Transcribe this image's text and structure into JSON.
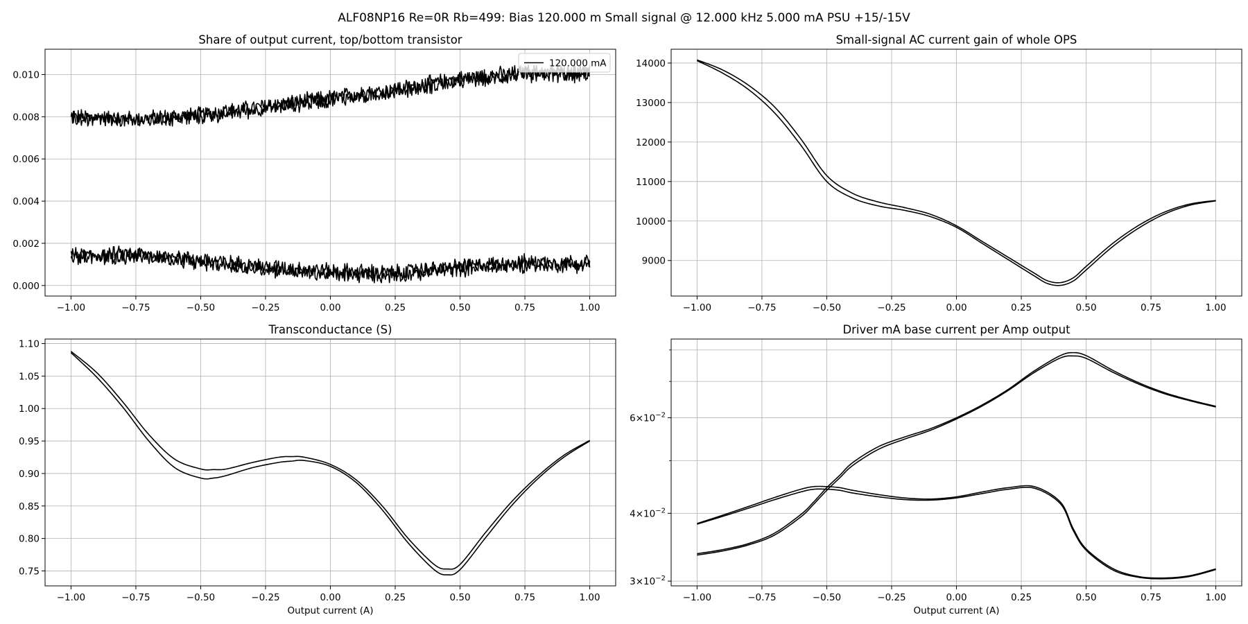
{
  "figure": {
    "suptitle": "ALF08NP16 Re=0R Rb=499: Bias 120.000 m Small signal @ 12.000 kHz 5.000 mA PSU +15/-15V"
  },
  "chart_data": [
    {
      "id": "share",
      "type": "line",
      "title": "Share of output current, top/bottom transistor",
      "xlabel": "",
      "ylabel": "",
      "xlim": [
        -1.1,
        1.1
      ],
      "ylim": [
        -0.0005,
        0.0112
      ],
      "xticks": [
        -1.0,
        -0.75,
        -0.5,
        -0.25,
        0.0,
        0.25,
        0.5,
        0.75,
        1.0
      ],
      "xtick_labels": [
        "−1.00",
        "−0.75",
        "−0.50",
        "−0.25",
        "0.00",
        "0.25",
        "0.50",
        "0.75",
        "1.00"
      ],
      "yticks": [
        0.0,
        0.002,
        0.004,
        0.006,
        0.008,
        0.01
      ],
      "ytick_labels": [
        "0.000",
        "0.002",
        "0.004",
        "0.006",
        "0.008",
        "0.010"
      ],
      "grid": true,
      "legend": {
        "position": "top-right",
        "entries": [
          "120.000 mA"
        ]
      },
      "noise": 0.00045,
      "series": [
        {
          "name": "120.000 mA",
          "x": [
            -1.0,
            -0.75,
            -0.5,
            -0.25,
            0.0,
            0.25,
            0.5,
            0.75,
            1.0
          ],
          "y": [
            0.008,
            0.0079,
            0.0081,
            0.0085,
            0.0089,
            0.0093,
            0.0098,
            0.0101,
            0.0101
          ]
        },
        {
          "x": [
            -1.0,
            -0.75,
            -0.5,
            -0.25,
            0.0,
            0.25,
            0.5,
            0.75,
            1.0
          ],
          "y": [
            0.0079,
            0.0078,
            0.008,
            0.0084,
            0.0088,
            0.0092,
            0.0097,
            0.01,
            0.01
          ]
        },
        {
          "x": [
            -1.0,
            -0.75,
            -0.5,
            -0.25,
            0.0,
            0.25,
            0.5,
            0.75,
            1.0
          ],
          "y": [
            0.0014,
            0.0015,
            0.0012,
            0.0009,
            0.0007,
            0.0006,
            0.0009,
            0.0011,
            0.0011
          ]
        },
        {
          "x": [
            -1.0,
            -0.75,
            -0.5,
            -0.25,
            0.0,
            0.25,
            0.5,
            0.75,
            1.0
          ],
          "y": [
            0.0013,
            0.0014,
            0.0011,
            0.0008,
            0.0005,
            0.0005,
            0.0008,
            0.001,
            0.001
          ]
        }
      ]
    },
    {
      "id": "gain",
      "type": "line",
      "title": "Small-signal AC current gain of whole OPS",
      "xlabel": "",
      "ylabel": "",
      "xlim": [
        -1.1,
        1.1
      ],
      "ylim": [
        8100,
        14350
      ],
      "xticks": [
        -1.0,
        -0.75,
        -0.5,
        -0.25,
        0.0,
        0.25,
        0.5,
        0.75,
        1.0
      ],
      "xtick_labels": [
        "−1.00",
        "−0.75",
        "−0.50",
        "−0.25",
        "0.00",
        "0.25",
        "0.50",
        "0.75",
        "1.00"
      ],
      "yticks": [
        9000,
        10000,
        11000,
        12000,
        13000,
        14000
      ],
      "ytick_labels": [
        "9000",
        "10000",
        "11000",
        "12000",
        "13000",
        "14000"
      ],
      "grid": true,
      "series": [
        {
          "x": [
            -1.0,
            -0.9,
            -0.8,
            -0.7,
            -0.6,
            -0.5,
            -0.4,
            -0.3,
            -0.2,
            -0.1,
            0.0,
            0.1,
            0.2,
            0.3,
            0.35,
            0.4,
            0.45,
            0.5,
            0.6,
            0.7,
            0.8,
            0.9,
            1.0
          ],
          "y": [
            14080,
            13820,
            13430,
            12880,
            12080,
            11150,
            10700,
            10480,
            10340,
            10170,
            9880,
            9480,
            9080,
            8680,
            8490,
            8440,
            8560,
            8850,
            9420,
            9880,
            10220,
            10430,
            10520
          ]
        },
        {
          "x": [
            -1.0,
            -0.9,
            -0.8,
            -0.7,
            -0.6,
            -0.5,
            -0.4,
            -0.3,
            -0.2,
            -0.1,
            0.0,
            0.1,
            0.2,
            0.3,
            0.35,
            0.4,
            0.45,
            0.5,
            0.6,
            0.7,
            0.8,
            0.9,
            1.0
          ],
          "y": [
            14060,
            13740,
            13320,
            12730,
            11920,
            11000,
            10580,
            10380,
            10270,
            10110,
            9840,
            9430,
            9020,
            8610,
            8420,
            8370,
            8480,
            8760,
            9340,
            9810,
            10170,
            10400,
            10510
          ]
        }
      ]
    },
    {
      "id": "transconductance",
      "type": "line",
      "title": "Transconductance (S)",
      "xlabel": "Output current (A)",
      "ylabel": "",
      "xlim": [
        -1.1,
        1.1
      ],
      "ylim": [
        0.727,
        1.107
      ],
      "xticks": [
        -1.0,
        -0.75,
        -0.5,
        -0.25,
        0.0,
        0.25,
        0.5,
        0.75,
        1.0
      ],
      "xtick_labels": [
        "−1.00",
        "−0.75",
        "−0.50",
        "−0.25",
        "0.00",
        "0.25",
        "0.50",
        "0.75",
        "1.00"
      ],
      "yticks": [
        0.75,
        0.8,
        0.85,
        0.9,
        0.95,
        1.0,
        1.05,
        1.1
      ],
      "ytick_labels": [
        "0.75",
        "0.80",
        "0.85",
        "0.90",
        "0.95",
        "1.00",
        "1.05",
        "1.10"
      ],
      "grid": true,
      "series": [
        {
          "x": [
            -1.0,
            -0.9,
            -0.8,
            -0.7,
            -0.6,
            -0.5,
            -0.45,
            -0.4,
            -0.3,
            -0.2,
            -0.15,
            -0.1,
            0.0,
            0.1,
            0.2,
            0.3,
            0.4,
            0.45,
            0.5,
            0.6,
            0.7,
            0.8,
            0.9,
            1.0
          ],
          "y": [
            1.088,
            1.055,
            1.01,
            0.96,
            0.922,
            0.907,
            0.906,
            0.907,
            0.917,
            0.925,
            0.926,
            0.925,
            0.914,
            0.89,
            0.85,
            0.8,
            0.76,
            0.753,
            0.76,
            0.81,
            0.857,
            0.896,
            0.928,
            0.951
          ]
        },
        {
          "x": [
            -1.0,
            -0.9,
            -0.8,
            -0.7,
            -0.6,
            -0.5,
            -0.45,
            -0.4,
            -0.3,
            -0.2,
            -0.15,
            -0.1,
            0.0,
            0.1,
            0.2,
            0.3,
            0.4,
            0.45,
            0.5,
            0.6,
            0.7,
            0.8,
            0.9,
            1.0
          ],
          "y": [
            1.086,
            1.048,
            1.002,
            0.95,
            0.909,
            0.893,
            0.893,
            0.897,
            0.909,
            0.917,
            0.919,
            0.92,
            0.911,
            0.886,
            0.844,
            0.793,
            0.752,
            0.744,
            0.752,
            0.802,
            0.851,
            0.892,
            0.925,
            0.95
          ]
        }
      ]
    },
    {
      "id": "driver",
      "type": "line",
      "title": "Driver mA base current per Amp output",
      "xlabel": "Output current (A)",
      "ylabel": "",
      "yscale": "log",
      "xlim": [
        -1.1,
        1.1
      ],
      "ylim": [
        0.0294,
        0.0838
      ],
      "xticks": [
        -1.0,
        -0.75,
        -0.5,
        -0.25,
        0.0,
        0.25,
        0.5,
        0.75,
        1.0
      ],
      "xtick_labels": [
        "−1.00",
        "−0.75",
        "−0.50",
        "−0.25",
        "0.00",
        "0.25",
        "0.50",
        "0.75",
        "1.00"
      ],
      "yticks": [
        0.03,
        0.04,
        0.06
      ],
      "ytick_mantissa": [
        "3",
        "4",
        "6"
      ],
      "ytick_base": "10",
      "ytick_exp": "−2",
      "yminor": [
        0.05,
        0.07,
        0.08
      ],
      "grid": true,
      "series": [
        {
          "x": [
            -1.0,
            -0.9,
            -0.8,
            -0.7,
            -0.6,
            -0.55,
            -0.5,
            -0.45,
            -0.4,
            -0.3,
            -0.2,
            -0.1,
            0.0,
            0.1,
            0.2,
            0.3,
            0.4,
            0.45,
            0.5,
            0.6,
            0.7,
            0.8,
            0.9,
            1.0
          ],
          "y": [
            0.0383,
            0.0397,
            0.0412,
            0.0428,
            0.0443,
            0.0448,
            0.0448,
            0.0446,
            0.0441,
            0.0433,
            0.0427,
            0.0425,
            0.0429,
            0.0438,
            0.0446,
            0.0448,
            0.042,
            0.0375,
            0.0344,
            0.0317,
            0.0306,
            0.0304,
            0.0307,
            0.0316
          ]
        },
        {
          "x": [
            -1.0,
            -0.9,
            -0.8,
            -0.7,
            -0.6,
            -0.55,
            -0.5,
            -0.45,
            -0.4,
            -0.3,
            -0.2,
            -0.1,
            0.0,
            0.1,
            0.2,
            0.3,
            0.4,
            0.45,
            0.5,
            0.6,
            0.7,
            0.8,
            0.9,
            1.0
          ],
          "y": [
            0.0382,
            0.0395,
            0.0409,
            0.0424,
            0.0438,
            0.0443,
            0.0443,
            0.0441,
            0.0436,
            0.0429,
            0.0424,
            0.0423,
            0.0427,
            0.0435,
            0.0443,
            0.0445,
            0.0417,
            0.0372,
            0.0342,
            0.0315,
            0.0305,
            0.0303,
            0.0306,
            0.0315
          ]
        },
        {
          "x": [
            -1.0,
            -0.9,
            -0.8,
            -0.7,
            -0.6,
            -0.55,
            -0.5,
            -0.45,
            -0.4,
            -0.3,
            -0.2,
            -0.1,
            0.0,
            0.1,
            0.2,
            0.3,
            0.4,
            0.45,
            0.5,
            0.6,
            0.7,
            0.8,
            0.9,
            1.0
          ],
          "y": [
            0.0337,
            0.0343,
            0.0352,
            0.0368,
            0.0398,
            0.042,
            0.0446,
            0.047,
            0.0496,
            0.0531,
            0.0553,
            0.0573,
            0.06,
            0.0634,
            0.0677,
            0.0732,
            0.0781,
            0.0791,
            0.0781,
            0.0735,
            0.0697,
            0.0668,
            0.0647,
            0.063
          ]
        },
        {
          "x": [
            -1.0,
            -0.9,
            -0.8,
            -0.7,
            -0.6,
            -0.55,
            -0.5,
            -0.45,
            -0.4,
            -0.3,
            -0.2,
            -0.1,
            0.0,
            0.1,
            0.2,
            0.3,
            0.4,
            0.45,
            0.5,
            0.6,
            0.7,
            0.8,
            0.9,
            1.0
          ],
          "y": [
            0.0335,
            0.0341,
            0.035,
            0.0365,
            0.0394,
            0.0416,
            0.0441,
            0.0465,
            0.049,
            0.0525,
            0.0548,
            0.0569,
            0.0597,
            0.0631,
            0.0674,
            0.0727,
            0.0773,
            0.078,
            0.0772,
            0.0729,
            0.0693,
            0.0665,
            0.0645,
            0.0628
          ]
        }
      ]
    }
  ]
}
